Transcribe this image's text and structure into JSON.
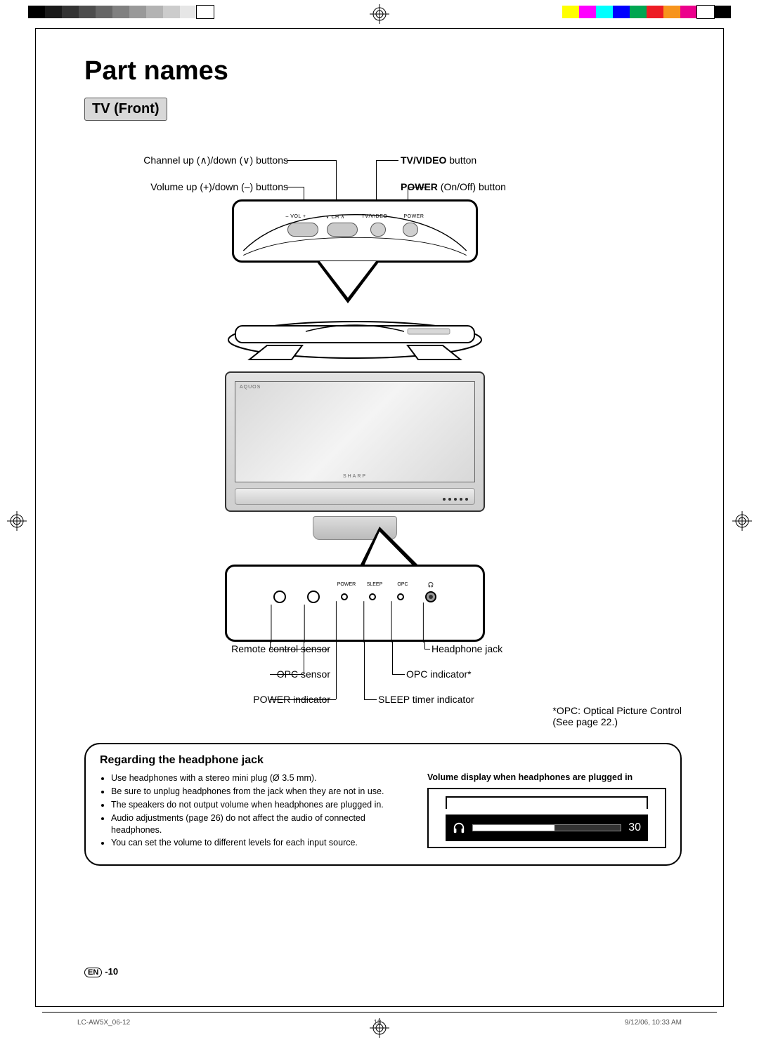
{
  "printer_bars_left_grays": [
    "#000000",
    "#1a1a1a",
    "#333333",
    "#4d4d4d",
    "#666666",
    "#808080",
    "#999999",
    "#b3b3b3",
    "#cccccc",
    "#e6e6e6",
    "#ffffff"
  ],
  "printer_bars_right_colors": [
    "#ffff00",
    "#ff00ff",
    "#00ffff",
    "#0000ff",
    "#00a651",
    "#ed1c24",
    "#f7941d",
    "#ec008c",
    "#ffffff",
    "#000000"
  ],
  "title": "Part names",
  "subtitle": "TV (Front)",
  "top_callouts": {
    "channel": "Channel up (∧)/down (∨) buttons",
    "volume": "Volume up (+)/down (–) buttons",
    "tv_video_bold": "TV/VIDEO",
    "tv_video_rest": " button",
    "power_bold": "POWER",
    "power_rest": " (On/Off) button"
  },
  "top_box_labels": [
    "–  VOL  +",
    "∨  CH  ∧",
    "TV/VIDEO",
    "POWER"
  ],
  "tv": {
    "brand": "AQUOS",
    "logo": "SHARP"
  },
  "bottom_box_labels": [
    "POWER",
    "SLEEP",
    "OPC",
    "🎧"
  ],
  "bottom_callouts": {
    "remote": "Remote control sensor",
    "opc_sensor": "OPC sensor",
    "power_ind": "POWER indicator",
    "headphone": "Headphone jack",
    "opc_ind": "OPC indicator*",
    "sleep": "SLEEP timer indicator"
  },
  "opc_note_l1": "*OPC: Optical Picture Control",
  "opc_note_l2": "(See page 22.)",
  "headphone_box": {
    "heading": "Regarding the headphone jack",
    "bullets": [
      "Use headphones with a stereo mini plug (Ø 3.5 mm).",
      "Be sure to unplug headphones from the jack when they are not in use.",
      "The speakers do not output volume when headphones are plugged in.",
      "Audio adjustments (page 26) do not affect the audio of connected headphones.",
      "You can set the volume to different levels for each input source."
    ],
    "vol_heading": "Volume display when headphones are plugged in",
    "vol_value": "30"
  },
  "page_footer": {
    "lang": "EN",
    "page": "-10"
  },
  "doc_footer": {
    "file": "LC-AW5X_06-12",
    "pg": "10",
    "date": "9/12/06, 10:33 AM"
  }
}
